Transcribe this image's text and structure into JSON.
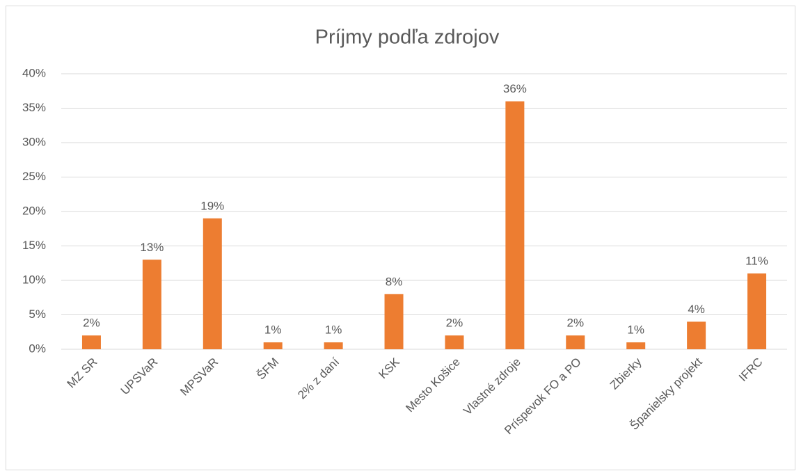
{
  "chart_data": {
    "type": "bar",
    "title": "Príjmy podľa zdrojov",
    "categories": [
      "MZ SR",
      "UPSVaR",
      "MPSVaR",
      "ŠFM",
      "2% z daní",
      "KSK",
      "Mesto Košice",
      "Vlastné zdroje",
      "Príspevok FO a PO",
      "Zbierky",
      "Španielsky projekt",
      "IFRC"
    ],
    "values": [
      2,
      13,
      19,
      1,
      1,
      8,
      2,
      36,
      2,
      1,
      4,
      11
    ],
    "value_labels": [
      "2%",
      "13%",
      "19%",
      "1%",
      "1%",
      "8%",
      "2%",
      "36%",
      "2%",
      "1%",
      "4%",
      "11%"
    ],
    "color": "#ed7d31",
    "ylim": [
      0,
      40
    ],
    "yticks": [
      {
        "value": 0,
        "label": "0%"
      },
      {
        "value": 5,
        "label": "5%"
      },
      {
        "value": 10,
        "label": "10%"
      },
      {
        "value": 15,
        "label": "15%"
      },
      {
        "value": 20,
        "label": "20%"
      },
      {
        "value": 25,
        "label": "25%"
      },
      {
        "value": 30,
        "label": "30%"
      },
      {
        "value": 35,
        "label": "35%"
      },
      {
        "value": 40,
        "label": "40%"
      }
    ],
    "grid": true
  }
}
